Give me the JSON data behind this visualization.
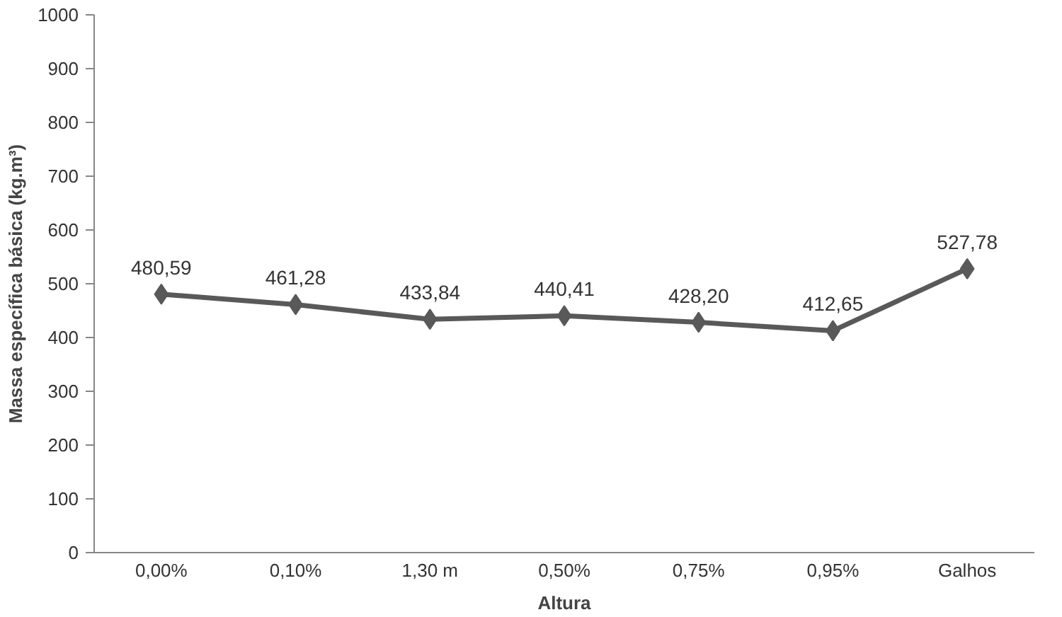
{
  "chart_data": {
    "type": "line",
    "xlabel": "Altura",
    "ylabel": "Massa específica básica (kg.m³)",
    "categories": [
      "0,00%",
      "0,10%",
      "1,30 m",
      "0,50%",
      "0,75%",
      "0,95%",
      "Galhos"
    ],
    "series": [
      {
        "color": "#595959",
        "values": [
          480.59,
          461.28,
          433.84,
          440.41,
          428.2,
          412.65,
          527.78
        ],
        "value_labels": [
          "480,59",
          "461,28",
          "433,84",
          "440,41",
          "428,20",
          "412,65",
          "527,78"
        ]
      }
    ],
    "ylim": [
      0,
      1000
    ],
    "yticks": [
      0,
      100,
      200,
      300,
      400,
      500,
      600,
      700,
      800,
      900,
      1000
    ],
    "marker": "diamond",
    "line_style": "solid",
    "grid": false
  }
}
